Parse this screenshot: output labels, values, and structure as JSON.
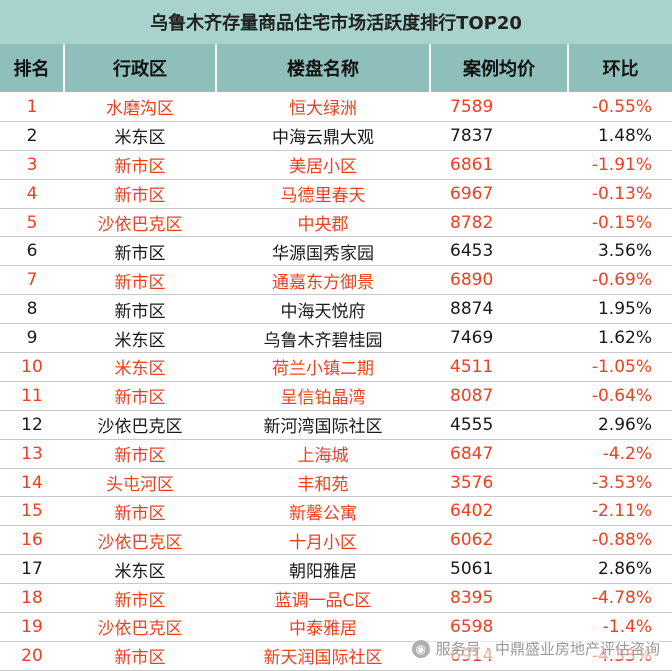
{
  "title": "乌鲁木齐存量商品住宅市场活跃度排行TOP20",
  "headers": [
    "排名",
    "行政区",
    "楼盘名称",
    "案例均价",
    "环比"
  ],
  "highlight_color": "#ee4020",
  "rows": [
    {
      "rank": "1",
      "district": "水磨沟区",
      "name": "恒大绿洲",
      "price": "7589",
      "change": "-0.55%"
    },
    {
      "rank": "2",
      "district": "米东区",
      "name": "中海云鼎大观",
      "price": "7837",
      "change": "1.48%"
    },
    {
      "rank": "3",
      "district": "新市区",
      "name": "美居小区",
      "price": "6861",
      "change": "-1.91%"
    },
    {
      "rank": "4",
      "district": "新市区",
      "name": "马德里春天",
      "price": "6967",
      "change": "-0.13%"
    },
    {
      "rank": "5",
      "district": "沙依巴克区",
      "name": "中央郡",
      "price": "8782",
      "change": "-0.15%"
    },
    {
      "rank": "6",
      "district": "新市区",
      "name": "华源国秀家园",
      "price": "6453",
      "change": "3.56%"
    },
    {
      "rank": "7",
      "district": "新市区",
      "name": "通嘉东方御景",
      "price": "6890",
      "change": "-0.69%"
    },
    {
      "rank": "8",
      "district": "新市区",
      "name": "中海天悦府",
      "price": "8874",
      "change": "1.95%"
    },
    {
      "rank": "9",
      "district": "米东区",
      "name": "乌鲁木齐碧桂园",
      "price": "7469",
      "change": "1.62%"
    },
    {
      "rank": "10",
      "district": "米东区",
      "name": "荷兰小镇二期",
      "price": "4511",
      "change": "-1.05%"
    },
    {
      "rank": "11",
      "district": "新市区",
      "name": "呈信铂晶湾",
      "price": "8087",
      "change": "-0.64%"
    },
    {
      "rank": "12",
      "district": "沙依巴克区",
      "name": "新河湾国际社区",
      "price": "4555",
      "change": "2.96%"
    },
    {
      "rank": "13",
      "district": "新市区",
      "name": "上海城",
      "price": "6847",
      "change": "-4.2%"
    },
    {
      "rank": "14",
      "district": "头屯河区",
      "name": "丰和苑",
      "price": "3576",
      "change": "-3.53%"
    },
    {
      "rank": "15",
      "district": "新市区",
      "name": "新馨公寓",
      "price": "6402",
      "change": "-2.11%"
    },
    {
      "rank": "16",
      "district": "沙依巴克区",
      "name": "十月小区",
      "price": "6062",
      "change": "-0.88%"
    },
    {
      "rank": "17",
      "district": "米东区",
      "name": "朝阳雅居",
      "price": "5061",
      "change": "2.86%"
    },
    {
      "rank": "18",
      "district": "新市区",
      "name": "蓝调一品C区",
      "price": "8395",
      "change": "-4.78%"
    },
    {
      "rank": "19",
      "district": "沙依巴克区",
      "name": "中泰雅居",
      "price": "6598",
      "change": "-1.4%"
    },
    {
      "rank": "20",
      "district": "新市区",
      "name": "新天润国际社区",
      "price": "6914",
      "change": "-4.33%"
    }
  ],
  "watermark": {
    "text": "服务号 · 中鼎盛业房地产评估咨询",
    "icon": "wechat-icon"
  }
}
